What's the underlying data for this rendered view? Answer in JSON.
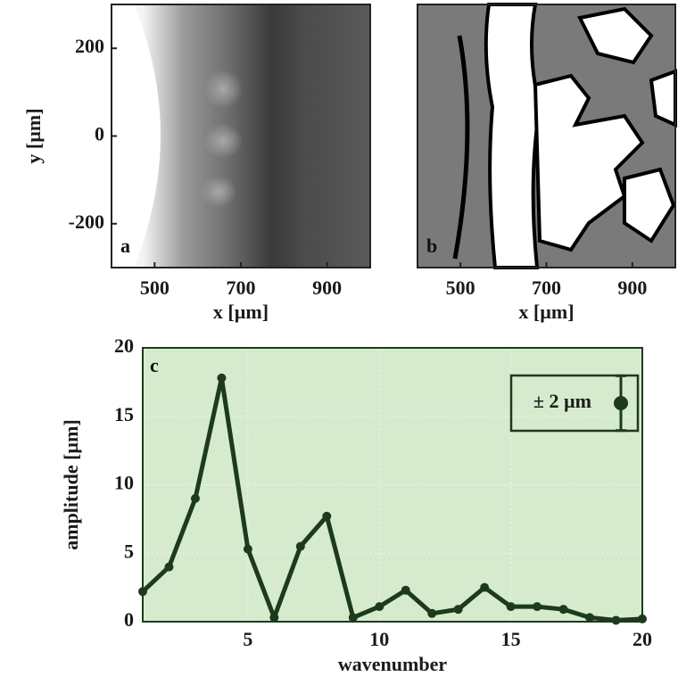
{
  "chart_data": [
    {
      "type": "image",
      "panel_label": "a",
      "xlabel": "x [µm]",
      "ylabel": "y [µm]",
      "xlim": [
        400,
        1000
      ],
      "ylim": [
        -300,
        300
      ],
      "xticks": [
        500,
        700,
        900
      ],
      "yticks": [
        -200,
        0,
        200
      ]
    },
    {
      "type": "image",
      "panel_label": "b",
      "xlabel": "x [µm]",
      "xlim": [
        400,
        1000
      ],
      "ylim": [
        -300,
        300
      ],
      "xticks": [
        500,
        700,
        900
      ]
    },
    {
      "type": "line",
      "panel_label": "c",
      "xlabel": "wavenumber",
      "ylabel": "amplitude [µm]",
      "x": [
        1,
        2,
        3,
        4,
        5,
        6,
        7,
        8,
        9,
        10,
        11,
        12,
        13,
        14,
        15,
        16,
        17,
        18,
        19,
        20
      ],
      "series": [
        {
          "color": "#1d3a1d",
          "values": [
            2.2,
            4.0,
            9.0,
            17.8,
            5.3,
            0.3,
            5.5,
            7.7,
            0.3,
            1.1,
            2.3,
            0.6,
            0.9,
            2.5,
            1.1,
            1.1,
            0.9,
            0.3,
            0.1,
            0.2
          ]
        }
      ],
      "xlim": [
        1,
        20
      ],
      "ylim": [
        0,
        20
      ],
      "xticks": [
        5,
        10,
        15,
        20
      ],
      "yticks": [
        0,
        5,
        10,
        15,
        20
      ],
      "grid": true,
      "background": "#d6ebcd",
      "legend": {
        "label": "± 2 µm",
        "error": 2,
        "corner": "top-right"
      }
    }
  ]
}
